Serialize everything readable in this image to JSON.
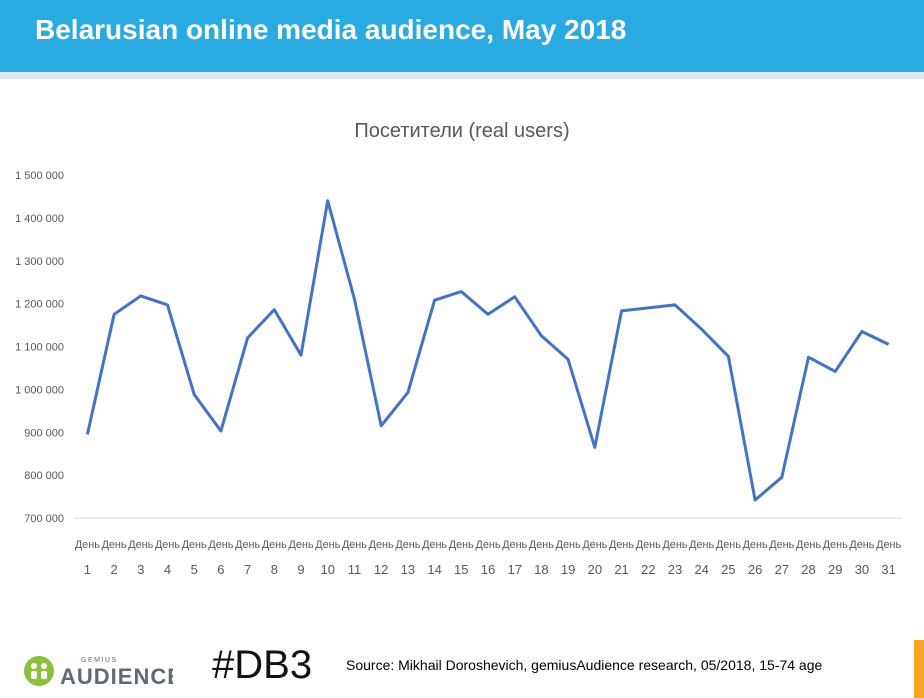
{
  "header": {
    "title": "Belarusian online media audience, May 2018"
  },
  "colors": {
    "header_bg": "#29abe2",
    "line": "#4472c4",
    "accent": "#f5a623"
  },
  "footer": {
    "logo_small": "GEMIUS",
    "logo_text": "AUDIENCE",
    "hashtag": "#DB3",
    "source": "Source: Mikhail Doroshevich, gemiusAudience research,  05/2018, 15-74 age"
  },
  "chart_data": {
    "type": "line",
    "title": "Посетители (real users)",
    "x_prefix": "День",
    "categories": [
      "1",
      "2",
      "3",
      "4",
      "5",
      "6",
      "7",
      "8",
      "9",
      "10",
      "11",
      "12",
      "13",
      "14",
      "15",
      "16",
      "17",
      "18",
      "19",
      "20",
      "21",
      "22",
      "23",
      "24",
      "25",
      "26",
      "27",
      "28",
      "29",
      "30",
      "31"
    ],
    "series": [
      {
        "values": [
          895000,
          1175000,
          1218000,
          1197000,
          988000,
          903000,
          1120000,
          1186000,
          1080000,
          1440000,
          1210000,
          915000,
          993000,
          1208000,
          1228000,
          1175000,
          1216000,
          1125000,
          1070000,
          865000,
          1183000,
          1190000,
          1197000,
          1140000,
          1077000,
          742000,
          795000,
          1075000,
          1042000,
          1135000,
          1105000
        ]
      }
    ],
    "ylim": [
      700000,
      1500000
    ],
    "yticks": [
      "700 000",
      "800 000",
      "900 000",
      "1 000 000",
      "1 100 000",
      "1 200 000",
      "1 300 000",
      "1 400 000",
      "1 500 000"
    ],
    "grid": false,
    "legend": "none"
  }
}
